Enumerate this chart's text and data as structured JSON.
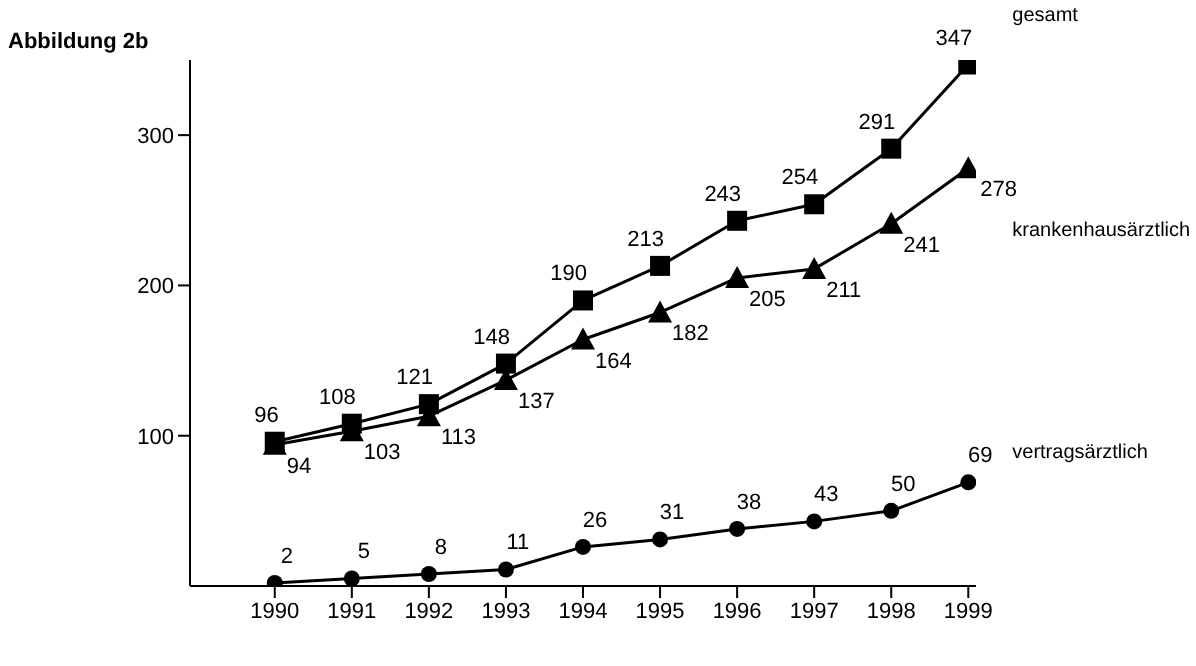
{
  "chart_data": {
    "type": "line",
    "title": "Abbildung 2b",
    "categories": [
      "1990",
      "1991",
      "1992",
      "1993",
      "1994",
      "1995",
      "1996",
      "1997",
      "1998",
      "1999"
    ],
    "series": [
      {
        "name": "gesamt",
        "color": "#000000",
        "marker": "square",
        "values": [
          96,
          108,
          121,
          148,
          190,
          213,
          243,
          254,
          291,
          347
        ]
      },
      {
        "name": "krankenhausärztlich",
        "color": "#000000",
        "marker": "triangle",
        "values": [
          94,
          103,
          113,
          137,
          164,
          182,
          205,
          211,
          241,
          278
        ]
      },
      {
        "name": "vertragsärztlich",
        "color": "#000000",
        "marker": "circle",
        "values": [
          2,
          5,
          8,
          11,
          26,
          31,
          38,
          43,
          50,
          69
        ]
      }
    ],
    "ylim": [
      0,
      350
    ],
    "yticks": [
      100,
      200,
      300
    ],
    "data_labels": true,
    "legend": false,
    "grid": false
  }
}
